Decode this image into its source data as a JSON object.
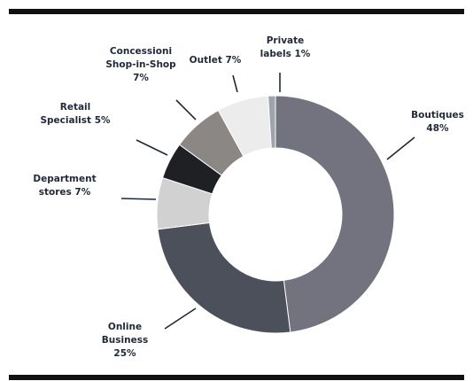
{
  "chart_data": {
    "type": "pie",
    "donut": true,
    "legend": "none",
    "slices": [
      {
        "label": "Boutiques 48%",
        "lines": [
          "Boutiques",
          "48%"
        ],
        "value": 48,
        "color": "#737380"
      },
      {
        "label": "Online Business 25%",
        "lines": [
          "Online",
          "Business",
          "25%"
        ],
        "value": 25,
        "color": "#4c505b"
      },
      {
        "label": "Department stores 7%",
        "lines": [
          "Department",
          "stores 7%"
        ],
        "value": 7,
        "color": "#d1d1d1"
      },
      {
        "label": "Retail Specialist 5%",
        "lines": [
          "Retail",
          "Specialist 5%"
        ],
        "value": 5,
        "color": "#1f2024"
      },
      {
        "label": "Concessioni Shop-in-Shop 7%",
        "lines": [
          "Concessioni",
          "Shop-in-Shop",
          "7%"
        ],
        "value": 7,
        "color": "#8a8784"
      },
      {
        "label": "Outlet 7%",
        "lines": [
          "Outlet 7%"
        ],
        "value": 7,
        "color": "#ececec"
      },
      {
        "label": "Private labels 1%",
        "lines": [
          "Private",
          "labels 1%"
        ],
        "value": 1,
        "color": "#9ea3ad"
      }
    ]
  }
}
